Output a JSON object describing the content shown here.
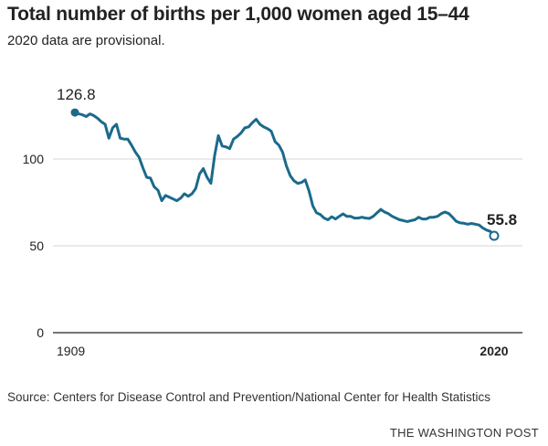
{
  "title": "Total number of births per 1,000 women aged 15–44",
  "subtitle": "2020 data are provisional.",
  "source": "Source: Centers for Disease Control and Prevention/National Center for Health Statistics",
  "brand": "THE WASHINGTON POST",
  "colors": {
    "line": "#1b6a8c",
    "grid": "#d6d6d6",
    "text": "#222222"
  },
  "chart_data": {
    "type": "line",
    "ylim": [
      0,
      130
    ],
    "xlim": [
      1909,
      2020
    ],
    "y_ticks": [
      0,
      50,
      100
    ],
    "x_tick_labels": [
      "1909",
      "2020"
    ],
    "grid": true,
    "annotations": [
      {
        "x": 1909,
        "y": 126.8,
        "label": "126.8",
        "marker": "filled"
      },
      {
        "x": 2020,
        "y": 55.8,
        "label": "55.8",
        "marker": "open"
      }
    ],
    "x": [
      1909,
      1910,
      1911,
      1912,
      1913,
      1914,
      1915,
      1916,
      1917,
      1918,
      1919,
      1920,
      1921,
      1922,
      1923,
      1924,
      1925,
      1926,
      1927,
      1928,
      1929,
      1930,
      1931,
      1932,
      1933,
      1934,
      1935,
      1936,
      1937,
      1938,
      1939,
      1940,
      1941,
      1942,
      1943,
      1944,
      1945,
      1946,
      1947,
      1948,
      1949,
      1950,
      1951,
      1952,
      1953,
      1954,
      1955,
      1956,
      1957,
      1958,
      1959,
      1960,
      1961,
      1962,
      1963,
      1964,
      1965,
      1966,
      1967,
      1968,
      1969,
      1970,
      1971,
      1972,
      1973,
      1974,
      1975,
      1976,
      1977,
      1978,
      1979,
      1980,
      1981,
      1982,
      1983,
      1984,
      1985,
      1986,
      1987,
      1988,
      1989,
      1990,
      1991,
      1992,
      1993,
      1994,
      1995,
      1996,
      1997,
      1998,
      1999,
      2000,
      2001,
      2002,
      2003,
      2004,
      2005,
      2006,
      2007,
      2008,
      2009,
      2010,
      2011,
      2012,
      2013,
      2014,
      2015,
      2016,
      2017,
      2018,
      2019,
      2020
    ],
    "y": [
      126.8,
      126.0,
      125.5,
      124.5,
      126.0,
      125.0,
      123.5,
      121.5,
      120.0,
      112.0,
      118.0,
      120.0,
      112.0,
      111.5,
      111.5,
      108.0,
      104.0,
      101.0,
      95.0,
      89.5,
      89.0,
      84.0,
      82.0,
      76.0,
      79.0,
      78.0,
      77.0,
      76.0,
      77.5,
      80.0,
      78.5,
      80.0,
      83.0,
      91.5,
      94.5,
      89.5,
      86.0,
      102.0,
      113.5,
      107.5,
      107.0,
      106.0,
      111.5,
      113.0,
      115.0,
      118.0,
      118.5,
      121.0,
      122.9,
      120.0,
      118.5,
      117.5,
      116.0,
      110.0,
      108.0,
      104.0,
      96.0,
      90.5,
      87.5,
      86.0,
      86.5,
      88.0,
      81.5,
      73.0,
      69.0,
      68.0,
      66.0,
      65.0,
      66.8,
      65.5,
      67.0,
      68.4,
      67.0,
      67.0,
      66.0,
      66.0,
      66.5,
      66.0,
      65.8,
      67.0,
      69.0,
      71.0,
      69.5,
      68.5,
      67.0,
      66.0,
      65.0,
      64.5,
      64.0,
      64.5,
      65.0,
      66.5,
      65.5,
      65.5,
      66.5,
      66.5,
      67.0,
      68.5,
      69.5,
      68.6,
      66.5,
      64.1,
      63.2,
      63.0,
      62.5,
      62.9,
      62.5,
      62.0,
      60.3,
      59.1,
      58.3,
      55.8
    ]
  }
}
